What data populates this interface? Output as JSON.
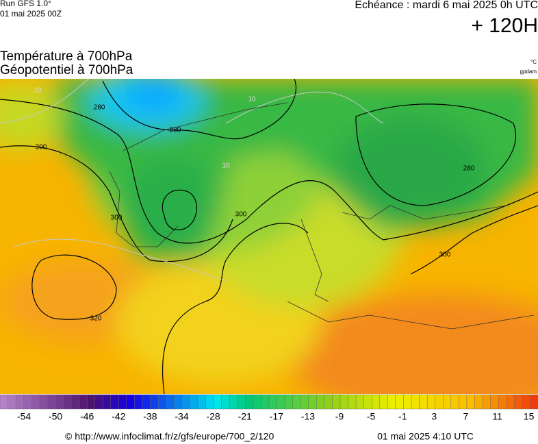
{
  "header": {
    "run": "Run GFS 1.0°",
    "run_date": "01 mai 2025 00Z",
    "echeance": "Echéance : mardi 6 mai 2025 0h UTC",
    "lead": "+ 120H",
    "title_temperature": "Température à 700hPa",
    "title_geopotential": "Géopotentiel à 700hPa",
    "unit_temperature": "°C",
    "unit_geopotential": "gpdam"
  },
  "contour_labels": [
    "280",
    "280",
    "300",
    "300",
    "300",
    "280",
    "300",
    "320",
    "10",
    "10",
    "10"
  ],
  "colorbar": {
    "ticks": [
      -54,
      -50,
      -46,
      -42,
      -38,
      -34,
      -28,
      -21,
      -17,
      -13,
      -9,
      -5,
      -1,
      3,
      7,
      11,
      15
    ]
  },
  "footer": {
    "url": "© http://www.infoclimat.fr/z/gfs/europe/700_2/120",
    "issued": "01 mai 2025  4:10 UTC"
  }
}
